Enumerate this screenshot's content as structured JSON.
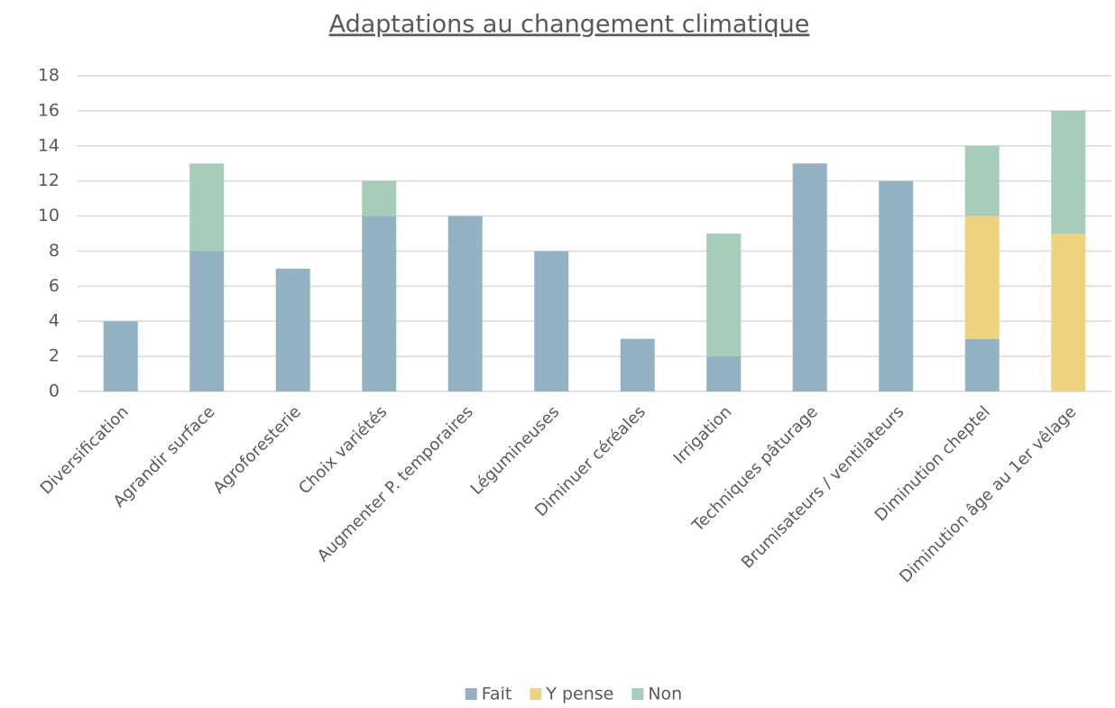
{
  "chart_data": {
    "type": "stacked_bar",
    "title": "Adaptations au changement climatique",
    "categories": [
      "Diversification",
      "Agrandir surface",
      "Agroforesterie",
      "Choix variétés",
      "Augmenter P. temporaires",
      "Légumineuses",
      "Diminuer céréales",
      "Irrigation",
      "Techniques pâturage",
      "Brumisateurs / ventilateurs",
      "Diminution cheptel",
      "Diminution âge au 1er vêlage"
    ],
    "series": [
      {
        "name": "Fait",
        "color": "#93b3c4",
        "values": [
          4,
          8,
          7,
          10,
          10,
          8,
          3,
          2,
          13,
          12,
          3,
          0
        ]
      },
      {
        "name": "Y pense",
        "color": "#f0d37f",
        "values": [
          0,
          0,
          0,
          0,
          0,
          0,
          0,
          0,
          0,
          0,
          7,
          9
        ]
      },
      {
        "name": "Non",
        "color": "#a6cdb9",
        "values": [
          0,
          5,
          0,
          2,
          0,
          0,
          0,
          7,
          0,
          0,
          4,
          7
        ]
      }
    ],
    "ylim": [
      0,
      18
    ],
    "yticks": [
      0,
      2,
      4,
      6,
      8,
      10,
      12,
      14,
      16,
      18
    ],
    "grid": true,
    "legend": "bottom"
  }
}
